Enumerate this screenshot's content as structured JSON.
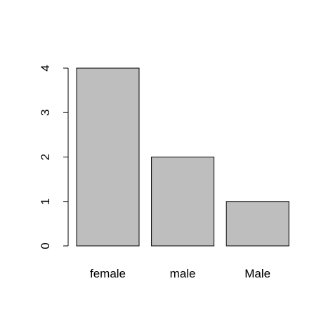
{
  "chart_data": {
    "type": "bar",
    "categories": [
      "female",
      "male",
      "Male"
    ],
    "values": [
      4,
      2,
      1
    ],
    "color": "#bebebe",
    "ylim": [
      0,
      4
    ],
    "yticks": [
      0,
      1,
      2,
      3,
      4
    ],
    "grid": false
  }
}
